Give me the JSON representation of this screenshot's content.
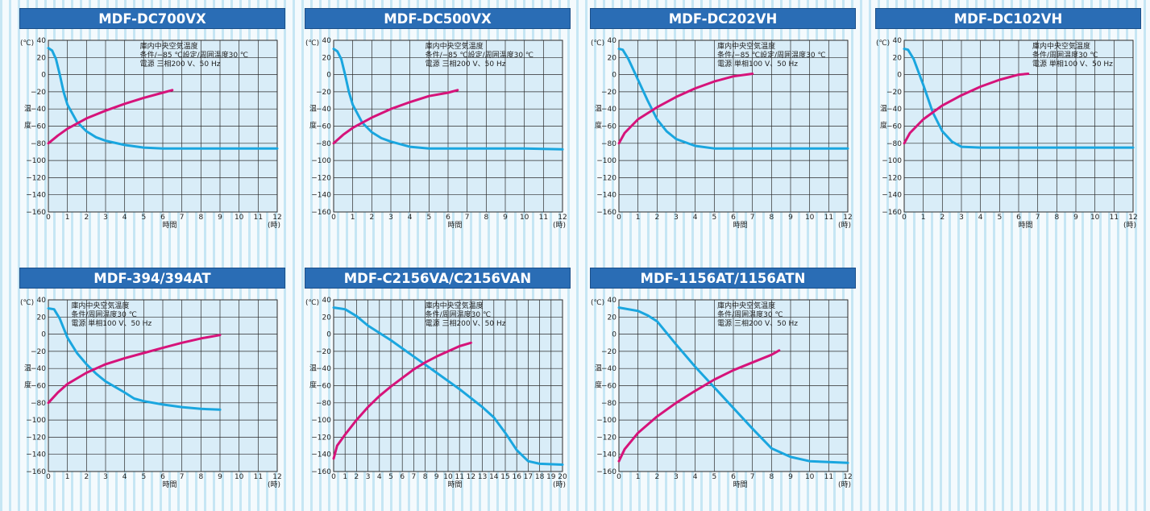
{
  "colors": {
    "cooldown": "#1aa6df",
    "recovery": "#d6137a",
    "plot_bg": "#d9edf8",
    "title_bg": "#2a6db5"
  },
  "chart_data": [
    {
      "type": "line",
      "title": "MDF-DC700VX",
      "xlabel": "時間",
      "x_unit": "(時)",
      "ylabel": "温度",
      "y_unit": "(℃)",
      "xlim": [
        0,
        12
      ],
      "ylim": [
        -160,
        40
      ],
      "notes": [
        "庫内中央空気温度",
        "条件/−85 ℃設定/周囲温度30 ℃",
        "電源 三相200 V、50 Hz"
      ],
      "series": [
        {
          "points": [
            [
              0,
              31
            ],
            [
              0.2,
              28
            ],
            [
              0.4,
              18
            ],
            [
              0.6,
              0
            ],
            [
              0.8,
              -20
            ],
            [
              1,
              -35
            ],
            [
              1.5,
              -55
            ],
            [
              2,
              -66
            ],
            [
              2.5,
              -73
            ],
            [
              3,
              -77
            ],
            [
              4,
              -82
            ],
            [
              5,
              -85
            ],
            [
              6,
              -86
            ],
            [
              8,
              -86
            ],
            [
              10,
              -86
            ],
            [
              12,
              -86
            ]
          ]
        },
        {
          "points": [
            [
              0,
              -80
            ],
            [
              0.5,
              -71
            ],
            [
              1,
              -63
            ],
            [
              2,
              -51
            ],
            [
              3,
              -42
            ],
            [
              4,
              -34
            ],
            [
              5,
              -27
            ],
            [
              6,
              -21
            ],
            [
              6.5,
              -18
            ]
          ]
        }
      ]
    },
    {
      "type": "line",
      "title": "MDF-DC500VX",
      "xlabel": "時間",
      "x_unit": "(時)",
      "ylabel": "温度",
      "y_unit": "(℃)",
      "xlim": [
        0,
        12
      ],
      "ylim": [
        -160,
        40
      ],
      "notes": [
        "庫内中央空気温度",
        "条件/−85 ℃設定/周囲温度30 ℃",
        "電源 三相200 V、50 Hz"
      ],
      "series": [
        {
          "points": [
            [
              0,
              30
            ],
            [
              0.2,
              27
            ],
            [
              0.4,
              18
            ],
            [
              0.6,
              0
            ],
            [
              0.8,
              -20
            ],
            [
              1,
              -35
            ],
            [
              1.5,
              -56
            ],
            [
              2,
              -67
            ],
            [
              2.5,
              -74
            ],
            [
              3,
              -78
            ],
            [
              4,
              -84
            ],
            [
              5,
              -86
            ],
            [
              6,
              -86
            ],
            [
              8,
              -86
            ],
            [
              10,
              -86
            ],
            [
              12,
              -87
            ]
          ]
        },
        {
          "points": [
            [
              0,
              -80
            ],
            [
              0.5,
              -70
            ],
            [
              1,
              -62
            ],
            [
              2,
              -50
            ],
            [
              3,
              -40
            ],
            [
              4,
              -32
            ],
            [
              5,
              -25
            ],
            [
              6,
              -21
            ],
            [
              6.5,
              -18
            ]
          ]
        }
      ]
    },
    {
      "type": "line",
      "title": "MDF-DC202VH",
      "xlabel": "時間",
      "x_unit": "(時)",
      "ylabel": "温度",
      "y_unit": "(℃)",
      "xlim": [
        0,
        12
      ],
      "ylim": [
        -160,
        40
      ],
      "notes": [
        "庫内中央空気温度",
        "条件/−85 ℃設定/周囲温度30 ℃",
        "電源 単相100 V、50 Hz"
      ],
      "series": [
        {
          "points": [
            [
              0,
              30
            ],
            [
              0.2,
              29
            ],
            [
              0.5,
              18
            ],
            [
              1,
              -6
            ],
            [
              1.5,
              -30
            ],
            [
              2,
              -52
            ],
            [
              2.5,
              -66
            ],
            [
              3,
              -75
            ],
            [
              4,
              -83
            ],
            [
              5,
              -86
            ],
            [
              6,
              -86
            ],
            [
              8,
              -86
            ],
            [
              10,
              -86
            ],
            [
              12,
              -86
            ]
          ]
        },
        {
          "points": [
            [
              0,
              -80
            ],
            [
              0.3,
              -68
            ],
            [
              1,
              -52
            ],
            [
              2,
              -38
            ],
            [
              3,
              -26
            ],
            [
              4,
              -16
            ],
            [
              5,
              -8
            ],
            [
              6,
              -2
            ],
            [
              7,
              1
            ]
          ]
        }
      ]
    },
    {
      "type": "line",
      "title": "MDF-DC102VH",
      "xlabel": "時間",
      "x_unit": "(時)",
      "ylabel": "温度",
      "y_unit": "(℃)",
      "xlim": [
        0,
        12
      ],
      "ylim": [
        -160,
        40
      ],
      "notes": [
        "庫内中央空気温度",
        "条件/周囲温度30 ℃",
        "電源 単相100 V、50 Hz"
      ],
      "series": [
        {
          "points": [
            [
              0,
              30
            ],
            [
              0.2,
              29
            ],
            [
              0.5,
              18
            ],
            [
              1,
              -12
            ],
            [
              1.5,
              -44
            ],
            [
              2,
              -66
            ],
            [
              2.5,
              -78
            ],
            [
              3,
              -84
            ],
            [
              4,
              -85
            ],
            [
              6,
              -85
            ],
            [
              8,
              -85
            ],
            [
              10,
              -85
            ],
            [
              12,
              -85
            ]
          ]
        },
        {
          "points": [
            [
              0,
              -80
            ],
            [
              0.3,
              -68
            ],
            [
              1,
              -52
            ],
            [
              2,
              -36
            ],
            [
              3,
              -24
            ],
            [
              4,
              -14
            ],
            [
              5,
              -6
            ],
            [
              6,
              0
            ],
            [
              6.5,
              1
            ]
          ]
        }
      ]
    },
    {
      "type": "line",
      "title": "MDF-394/394AT",
      "xlabel": "時間",
      "x_unit": "(時)",
      "ylabel": "温度",
      "y_unit": "(℃)",
      "xlim": [
        0,
        12
      ],
      "ylim": [
        -160,
        40
      ],
      "notes": [
        "庫内中央空気温度",
        "条件/周囲温度30 ℃",
        "電源 単相100 V、50 Hz"
      ],
      "series": [
        {
          "points": [
            [
              0,
              30
            ],
            [
              0.3,
              29
            ],
            [
              0.6,
              18
            ],
            [
              1,
              -4
            ],
            [
              1.5,
              -22
            ],
            [
              2,
              -35
            ],
            [
              2.5,
              -46
            ],
            [
              3,
              -55
            ],
            [
              4,
              -68
            ],
            [
              4.5,
              -75
            ],
            [
              5,
              -78
            ],
            [
              6,
              -82
            ],
            [
              7,
              -85
            ],
            [
              8,
              -87
            ],
            [
              9,
              -88
            ]
          ]
        },
        {
          "points": [
            [
              0,
              -80
            ],
            [
              0.5,
              -68
            ],
            [
              1,
              -58
            ],
            [
              2,
              -45
            ],
            [
              3,
              -35
            ],
            [
              4,
              -28
            ],
            [
              5,
              -22
            ],
            [
              6,
              -16
            ],
            [
              7,
              -10
            ],
            [
              8,
              -5
            ],
            [
              9,
              -1
            ]
          ]
        }
      ]
    },
    {
      "type": "line",
      "title": "MDF-C2156VA/C2156VAN",
      "xlabel": "時間",
      "x_unit": "(時)",
      "ylabel": "温度",
      "y_unit": "(℃)",
      "xlim": [
        0,
        20
      ],
      "ylim": [
        -160,
        40
      ],
      "notes": [
        "庫内中央空気温度",
        "条件/周囲温度30 ℃",
        "電源 三相200 V、50 Hz"
      ],
      "series": [
        {
          "points": [
            [
              0,
              31
            ],
            [
              1,
              29
            ],
            [
              2,
              21
            ],
            [
              3,
              10
            ],
            [
              5,
              -7
            ],
            [
              7,
              -26
            ],
            [
              9,
              -45
            ],
            [
              11,
              -64
            ],
            [
              13,
              -85
            ],
            [
              14,
              -97
            ],
            [
              15,
              -115
            ],
            [
              16,
              -135
            ],
            [
              17,
              -148
            ],
            [
              18,
              -151
            ],
            [
              20,
              -152
            ]
          ]
        },
        {
          "points": [
            [
              0,
              -145
            ],
            [
              0.3,
              -130
            ],
            [
              1,
              -117
            ],
            [
              2,
              -100
            ],
            [
              3,
              -85
            ],
            [
              4,
              -72
            ],
            [
              5,
              -61
            ],
            [
              6,
              -51
            ],
            [
              7,
              -41
            ],
            [
              8,
              -33
            ],
            [
              9,
              -26
            ],
            [
              10,
              -20
            ],
            [
              11,
              -14
            ],
            [
              12,
              -10
            ]
          ]
        }
      ]
    },
    {
      "type": "line",
      "title": "MDF-1156AT/1156ATN",
      "xlabel": "時間",
      "x_unit": "(時)",
      "ylabel": "温度",
      "y_unit": "(℃)",
      "xlim": [
        0,
        12
      ],
      "ylim": [
        -160,
        40
      ],
      "notes": [
        "庫内中央空気温度",
        "条件/周囲温度30 ℃",
        "電源 三相200 V、50 Hz"
      ],
      "series": [
        {
          "points": [
            [
              0,
              31
            ],
            [
              1,
              27
            ],
            [
              1.5,
              22
            ],
            [
              2,
              15
            ],
            [
              3,
              -12
            ],
            [
              4,
              -38
            ],
            [
              5,
              -62
            ],
            [
              6,
              -86
            ],
            [
              7,
              -110
            ],
            [
              8,
              -133
            ],
            [
              9,
              -143
            ],
            [
              10,
              -148
            ],
            [
              11,
              -149
            ],
            [
              12,
              -150
            ]
          ]
        },
        {
          "points": [
            [
              0,
              -148
            ],
            [
              0.3,
              -134
            ],
            [
              1,
              -115
            ],
            [
              2,
              -96
            ],
            [
              3,
              -80
            ],
            [
              4,
              -66
            ],
            [
              5,
              -53
            ],
            [
              6,
              -42
            ],
            [
              7,
              -33
            ],
            [
              8,
              -24
            ],
            [
              8.4,
              -19
            ]
          ]
        }
      ]
    }
  ]
}
